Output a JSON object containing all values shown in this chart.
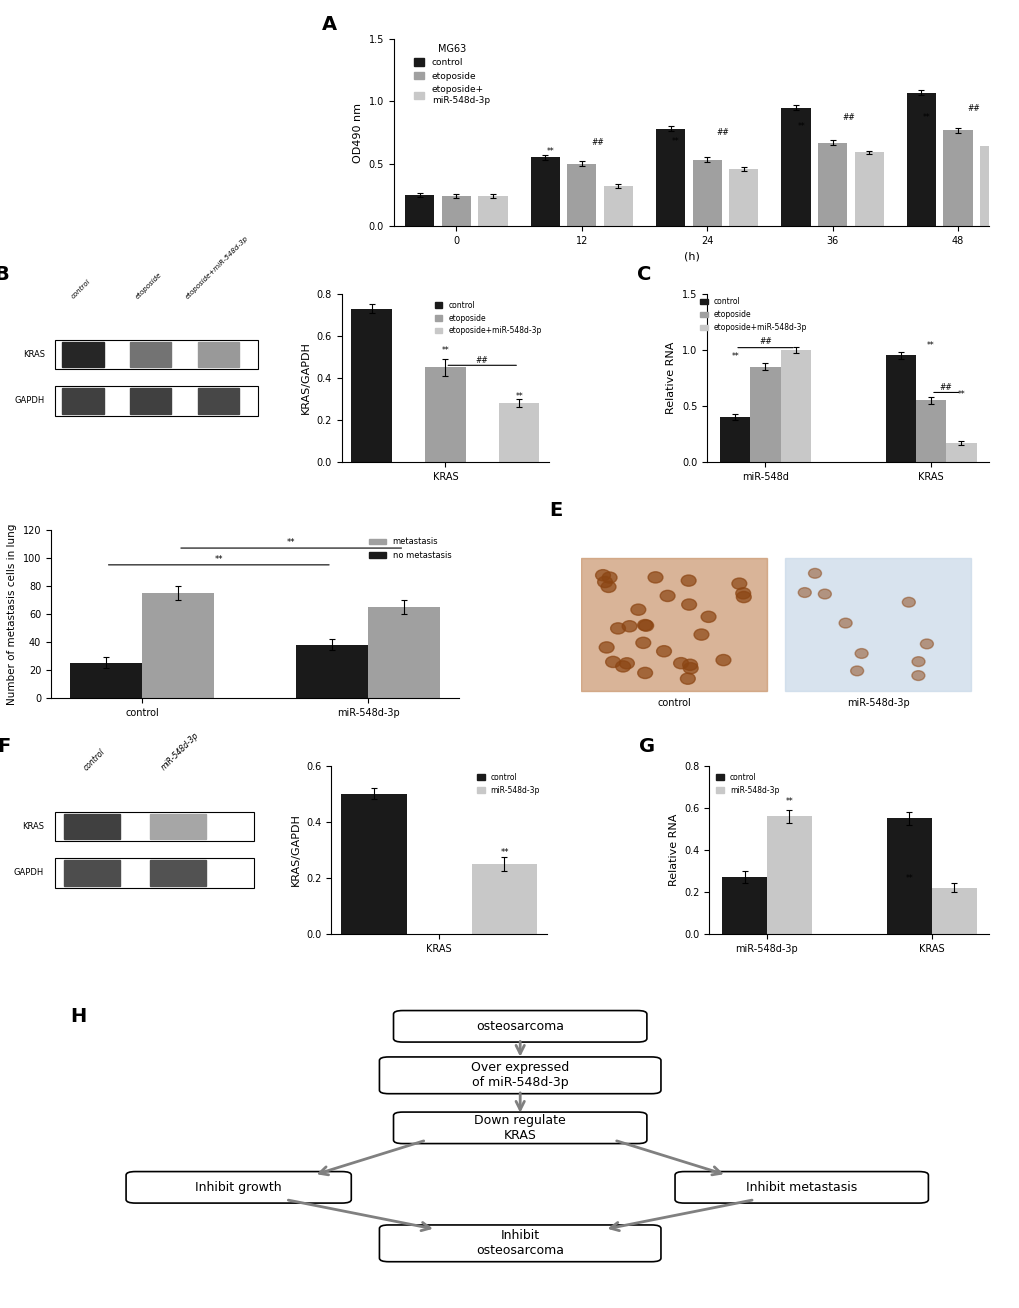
{
  "panel_A": {
    "title": "MG63",
    "xlabel": "(h)",
    "ylabel": "OD490 nm",
    "timepoints": [
      0,
      12,
      24,
      36,
      48
    ],
    "control": [
      0.25,
      0.55,
      0.78,
      0.95,
      1.07
    ],
    "etoposide": [
      0.24,
      0.5,
      0.53,
      0.67,
      0.77
    ],
    "etoposide_mir": [
      0.24,
      0.32,
      0.46,
      0.59,
      0.64
    ],
    "control_err": [
      0.015,
      0.02,
      0.02,
      0.02,
      0.02
    ],
    "etoposide_err": [
      0.015,
      0.02,
      0.02,
      0.02,
      0.02
    ],
    "etoposide_mir_err": [
      0.015,
      0.015,
      0.015,
      0.015,
      0.015
    ],
    "ylim": [
      0,
      1.5
    ],
    "yticks": [
      0.0,
      0.5,
      1.0,
      1.5
    ],
    "legend_labels": [
      "control",
      "etoposide",
      "etoposide+\nmiR-548d-3p"
    ],
    "colors": [
      "#1a1a1a",
      "#a0a0a0",
      "#c8c8c8"
    ]
  },
  "panel_B_bar": {
    "ylabel": "KRAS/GAPDH",
    "xlabel": "KRAS",
    "categories": [
      "control",
      "etoposide",
      "etoposide+miR-548d-3p"
    ],
    "values": [
      0.73,
      0.45,
      0.28
    ],
    "errors": [
      0.02,
      0.04,
      0.02
    ],
    "colors": [
      "#1a1a1a",
      "#a0a0a0",
      "#c8c8c8"
    ],
    "ylim": [
      0,
      0.8
    ],
    "yticks": [
      0.0,
      0.2,
      0.4,
      0.6,
      0.8
    ],
    "legend_labels": [
      "control",
      "etoposide",
      "etoposide+miR-548d-3p"
    ]
  },
  "panel_C": {
    "ylabel": "Relative RNA",
    "groups": [
      "miR-548d",
      "KRAS"
    ],
    "categories": [
      "control",
      "etoposide",
      "etoposide+miR-548d-3p"
    ],
    "values": [
      [
        0.4,
        0.85,
        1.0
      ],
      [
        0.95,
        0.55,
        0.17
      ]
    ],
    "errors": [
      [
        0.03,
        0.03,
        0.03
      ],
      [
        0.03,
        0.03,
        0.02
      ]
    ],
    "colors": [
      "#1a1a1a",
      "#a0a0a0",
      "#c8c8c8"
    ],
    "ylim": [
      0,
      1.5
    ],
    "yticks": [
      0.0,
      0.5,
      1.0,
      1.5
    ],
    "legend_labels": [
      "control",
      "etoposide",
      "etoposide+miR-548d-3p"
    ]
  },
  "panel_D": {
    "ylabel": "Number of metastasis cells in lung",
    "categories": [
      "control",
      "miR-548d-3p"
    ],
    "metastasis": [
      75,
      65
    ],
    "no_metastasis": [
      25,
      38
    ],
    "metastasis_err": [
      5,
      5
    ],
    "no_metastasis_err": [
      4,
      4
    ],
    "ylim": [
      0,
      120
    ],
    "yticks": [
      0,
      20,
      40,
      60,
      80,
      100,
      120
    ],
    "colors_metastasis": "#a0a0a0",
    "colors_no_metastasis": "#1a1a1a",
    "legend_labels": [
      "metastasis",
      "no metastasis"
    ]
  },
  "panel_F_bar": {
    "ylabel": "KRAS/GAPDH",
    "xlabel": "KRAS",
    "categories": [
      "control",
      "miR-548d-3p"
    ],
    "values": [
      0.5,
      0.25
    ],
    "errors": [
      0.02,
      0.025
    ],
    "colors": [
      "#1a1a1a",
      "#c8c8c8"
    ],
    "ylim": [
      0,
      0.6
    ],
    "yticks": [
      0.0,
      0.2,
      0.4,
      0.6
    ],
    "legend_labels": [
      "control",
      "miR-548d-3p"
    ]
  },
  "panel_G": {
    "ylabel": "Relative RNA",
    "groups": [
      "miR-548d-3p",
      "KRAS"
    ],
    "categories": [
      "control",
      "miR-548d-3p"
    ],
    "values": [
      [
        0.27,
        0.56
      ],
      [
        0.55,
        0.22
      ]
    ],
    "errors": [
      [
        0.03,
        0.03
      ],
      [
        0.03,
        0.02
      ]
    ],
    "colors": [
      "#1a1a1a",
      "#c8c8c8"
    ],
    "ylim": [
      0,
      0.8
    ],
    "yticks": [
      0.0,
      0.2,
      0.4,
      0.6,
      0.8
    ],
    "legend_labels": [
      "control",
      "miR-548d-3p"
    ]
  },
  "bg_color": "#ffffff",
  "bar_width": 0.25,
  "panel_labels_fontsize": 14,
  "axis_fontsize": 8,
  "tick_fontsize": 7
}
